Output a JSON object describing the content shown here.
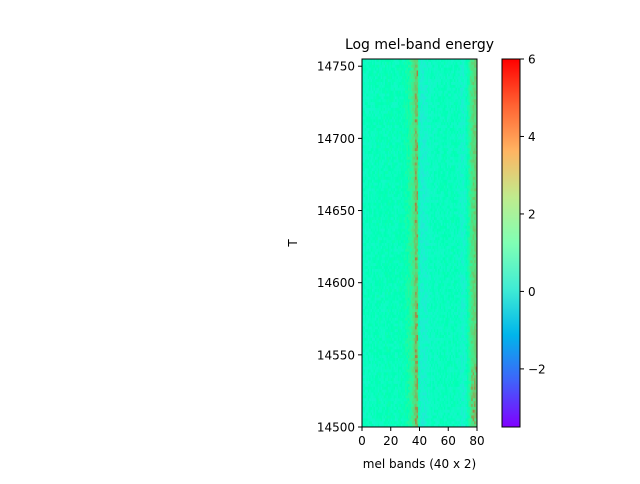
{
  "chart_data": {
    "type": "heatmap",
    "title": "Log mel-band energy",
    "xlabel": "mel bands (40 x 2)",
    "ylabel": "T",
    "x": {
      "range": [
        0,
        80
      ],
      "ticks": [
        0,
        20,
        40,
        60,
        80
      ],
      "tick_labels": [
        "0",
        "20",
        "40",
        "60",
        "80"
      ]
    },
    "y": {
      "range": [
        14500,
        14755
      ],
      "ticks": [
        14500,
        14550,
        14600,
        14650,
        14700,
        14750
      ],
      "tick_labels": [
        "14500",
        "14550",
        "14600",
        "14650",
        "14700",
        "14750"
      ]
    },
    "colorbar": {
      "colormap": "rainbow",
      "range": [
        -3.5,
        6
      ],
      "ticks": [
        -2,
        0,
        2,
        4,
        6
      ],
      "tick_labels": [
        "−2",
        "0",
        "2",
        "4",
        "6"
      ]
    },
    "band_profile": {
      "description_note": "approximate mean log energy per mel band over the shown frames",
      "bands": [
        [
          0,
          0.7
        ],
        [
          2,
          0.9
        ],
        [
          4,
          0.8
        ],
        [
          6,
          1.0
        ],
        [
          8,
          0.9
        ],
        [
          10,
          1.0
        ],
        [
          12,
          1.1
        ],
        [
          14,
          0.9
        ],
        [
          16,
          1.0
        ],
        [
          18,
          1.1
        ],
        [
          20,
          1.0
        ],
        [
          22,
          1.0
        ],
        [
          24,
          0.9
        ],
        [
          26,
          1.1
        ],
        [
          28,
          1.0
        ],
        [
          30,
          1.3
        ],
        [
          32,
          1.5
        ],
        [
          34,
          2.0
        ],
        [
          36,
          2.6
        ],
        [
          37,
          3.2
        ],
        [
          38,
          3.4
        ],
        [
          39,
          2.6
        ],
        [
          40,
          0.5
        ],
        [
          42,
          0.3
        ],
        [
          44,
          0.4
        ],
        [
          46,
          0.6
        ],
        [
          48,
          0.8
        ],
        [
          50,
          0.9
        ],
        [
          52,
          0.8
        ],
        [
          54,
          0.9
        ],
        [
          56,
          0.9
        ],
        [
          58,
          1.0
        ],
        [
          60,
          0.8
        ],
        [
          62,
          0.9
        ],
        [
          64,
          1.0
        ],
        [
          66,
          0.9
        ],
        [
          68,
          0.7
        ],
        [
          70,
          0.4
        ],
        [
          72,
          0.6
        ],
        [
          74,
          1.5
        ],
        [
          76,
          2.6
        ],
        [
          78,
          3.0
        ],
        [
          80,
          3.0
        ]
      ]
    }
  }
}
